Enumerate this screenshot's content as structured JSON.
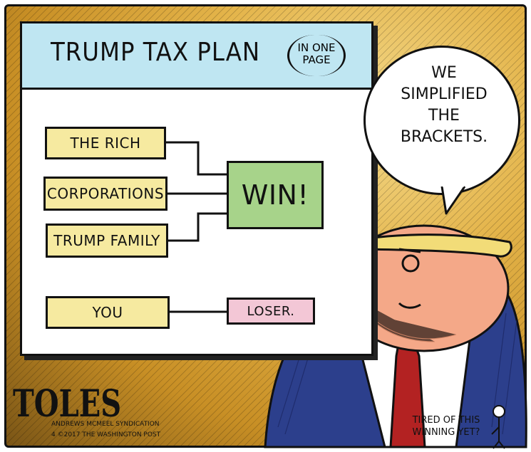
{
  "board": {
    "title": "TRUMP TAX PLAN",
    "aside_line1": "IN ONE",
    "aside_line2": "PAGE"
  },
  "bracket": {
    "entrants": [
      "THE RICH",
      "CORPORATIONS",
      "TRUMP FAMILY"
    ],
    "winner": "WIN!",
    "other_entrant": "YOU",
    "other_result": "LOSER."
  },
  "speech": {
    "line1": "WE",
    "line2": "SIMPLIFIED",
    "line3": "THE",
    "line4": "BRACKETS."
  },
  "mutter": {
    "line1": "TIRED OF THIS",
    "line2": "WINNING YET?"
  },
  "credits": {
    "signature": "TOLES",
    "syndicate": "ANDREWS MCMEEL SYNDICATION",
    "copyright": "4 ©2017 THE WASHINGTON POST"
  },
  "colors": {
    "header": "#bfe6f2",
    "entrant_box": "#f6eaa0",
    "winner_box": "#a7d38a",
    "loser_box": "#f3c7d6",
    "background": "#e4b44a",
    "hair": "#f2dc78",
    "face": "#f4a888",
    "suit": "#2c3f8c",
    "tie": "#b32222"
  }
}
